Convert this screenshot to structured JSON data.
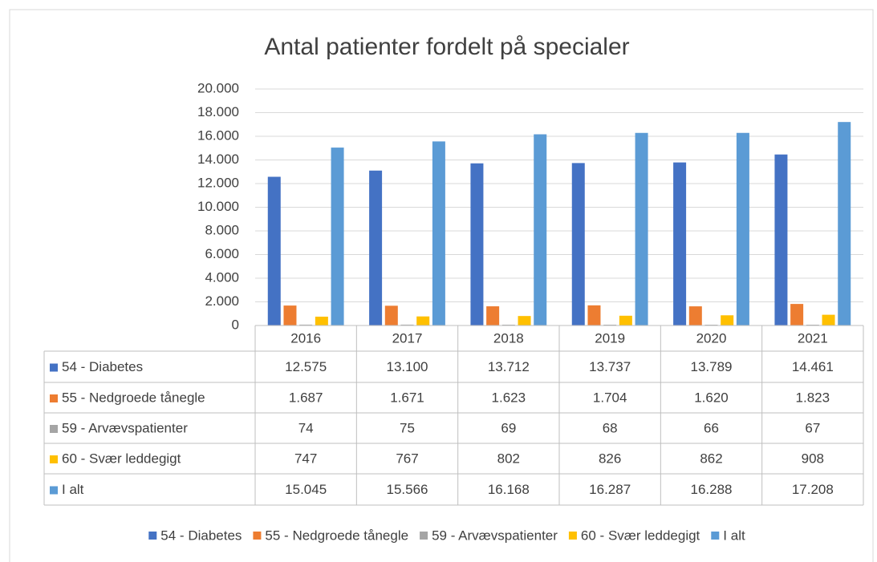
{
  "chart_data": {
    "type": "bar",
    "title": "Antal patienter fordelt på specialer",
    "categories": [
      "2016",
      "2017",
      "2018",
      "2019",
      "2020",
      "2021"
    ],
    "series": [
      {
        "name": "54 - Diabetes",
        "color": "#4472c4",
        "values": [
          12575,
          13100,
          13712,
          13737,
          13789,
          14461
        ],
        "value_labels": [
          "12.575",
          "13.100",
          "13.712",
          "13.737",
          "13.789",
          "14.461"
        ]
      },
      {
        "name": "55 - Nedgroede tånegle",
        "color": "#ed7d31",
        "values": [
          1687,
          1671,
          1623,
          1704,
          1620,
          1823
        ],
        "value_labels": [
          "1.687",
          "1.671",
          "1.623",
          "1.704",
          "1.620",
          "1.823"
        ]
      },
      {
        "name": "59 - Arvævspatienter",
        "color": "#a5a5a5",
        "values": [
          74,
          75,
          69,
          68,
          66,
          67
        ]
      },
      {
        "name": "60 - Svær leddegigt",
        "color": "#ffc000",
        "values": [
          747,
          767,
          802,
          826,
          862,
          908
        ]
      },
      {
        "name": "I alt",
        "color": "#5b9bd5",
        "values": [
          15045,
          15566,
          16168,
          16287,
          16288,
          17208
        ],
        "value_labels": [
          "15.045",
          "15.566",
          "16.168",
          "16.287",
          "16.288",
          "17.208"
        ]
      }
    ],
    "ylim": [
      0,
      20000
    ],
    "yticks": [
      0,
      {
        "value": 2000,
        "label": "2.000"
      },
      {
        "value": 4000,
        "label": "4.000"
      },
      {
        "value": 6000,
        "label": "6.000"
      },
      {
        "value": 8000,
        "label": "8.000"
      },
      {
        "value": 10000,
        "label": "10.000"
      },
      {
        "value": 12000,
        "label": "12.000"
      },
      {
        "value": 14000,
        "label": "14.000"
      },
      {
        "value": 16000,
        "label": "16.000"
      },
      {
        "value": 18000,
        "label": "18.000"
      },
      {
        "value": 20000,
        "label": "20.000"
      }
    ],
    "grid": true,
    "data_table": true,
    "legend": "bottom"
  }
}
